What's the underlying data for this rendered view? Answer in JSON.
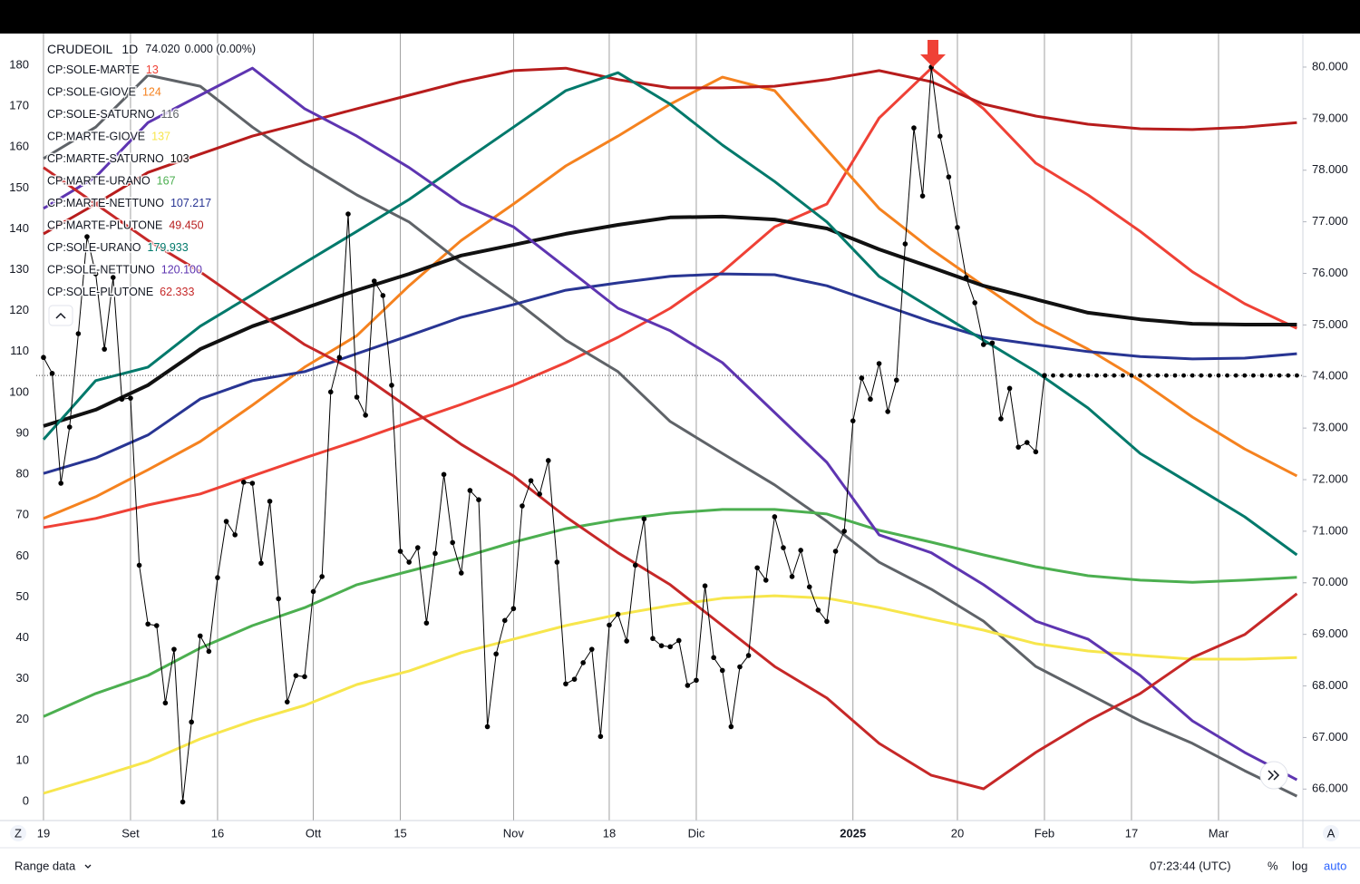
{
  "chart_data": {
    "type": "line",
    "symbol": "CRUDEOIL",
    "interval": "1D",
    "last_price": "74.020",
    "change": "0.000 (0.00%)",
    "grid": true,
    "xlim": [
      -0.83,
      144.69
    ],
    "xticks": [
      {
        "value": 0,
        "label": "19"
      },
      {
        "value": 10,
        "label": "Set"
      },
      {
        "value": 20,
        "label": "16"
      },
      {
        "value": 31,
        "label": "Ott"
      },
      {
        "value": 41,
        "label": "15"
      },
      {
        "value": 54,
        "label": "Nov"
      },
      {
        "value": 65,
        "label": "18"
      },
      {
        "value": 75,
        "label": "Dic"
      },
      {
        "value": 93,
        "label": "2025",
        "emphasis": true
      },
      {
        "value": 105,
        "label": "20"
      },
      {
        "value": 115,
        "label": "Feb"
      },
      {
        "value": 125,
        "label": "17"
      },
      {
        "value": 135,
        "label": "Mar"
      }
    ],
    "ylim": [
      -4.66,
      187.77
    ],
    "yticks": [
      0,
      10,
      20,
      30,
      40,
      50,
      60,
      70,
      80,
      90,
      100,
      110,
      120,
      130,
      140,
      150,
      160,
      170,
      180
    ],
    "y2lim": [
      65.39,
      80.65
    ],
    "y2ticks": [
      {
        "value": 66,
        "label": "66.000"
      },
      {
        "value": 67,
        "label": "67.000"
      },
      {
        "value": 68,
        "label": "68.000"
      },
      {
        "value": 69,
        "label": "69.000"
      },
      {
        "value": 70,
        "label": "70.000"
      },
      {
        "value": 71,
        "label": "71.000"
      },
      {
        "value": 72,
        "label": "72.000"
      },
      {
        "value": 73,
        "label": "73.000"
      },
      {
        "value": 74,
        "label": "74.000"
      },
      {
        "value": 75,
        "label": "75.000"
      },
      {
        "value": 76,
        "label": "76.000"
      },
      {
        "value": 77,
        "label": "77.000"
      },
      {
        "value": 78,
        "label": "78.000"
      },
      {
        "value": 79,
        "label": "79.000"
      },
      {
        "value": 80,
        "label": "80.000"
      }
    ],
    "x": [
      0,
      6,
      12,
      18,
      24,
      30,
      36,
      42,
      48,
      54,
      60,
      66,
      72,
      78,
      84,
      90,
      96,
      102,
      108,
      114,
      120,
      126,
      132,
      138,
      144
    ],
    "series": [
      {
        "name": "CP:SOLE-MARTE",
        "legend_value": 13,
        "color": "#ef4136",
        "line_width": 3,
        "values": [
          67,
          69.2,
          72.5,
          75.2,
          79.6,
          84,
          88.2,
          92.7,
          97.1,
          101.8,
          107.3,
          113.5,
          120.6,
          129.5,
          140.5,
          146.1,
          167.1,
          179.3,
          169.4,
          156.1,
          148.3,
          139.4,
          129.5,
          121.7,
          115.7
        ]
      },
      {
        "name": "CP:SOLE-GIOVE",
        "legend_value": 124,
        "color": "#f5821f",
        "line_width": 3,
        "values": [
          69.2,
          74.5,
          81.1,
          88,
          96.9,
          106.2,
          113.9,
          126.1,
          137.2,
          146.1,
          155.4,
          162.7,
          170.5,
          177.1,
          173.8,
          159.4,
          145,
          135,
          126.1,
          117.3,
          110.6,
          102.9,
          94,
          86.2,
          79.6
        ]
      },
      {
        "name": "CP:SOLE-SATURNO",
        "legend_value": 116,
        "color": "#5f6368",
        "line_width": 3,
        "values": [
          157.2,
          164.9,
          177.6,
          174.9,
          164.9,
          156.1,
          148.3,
          141.7,
          131.7,
          122.8,
          112.8,
          105.1,
          92.9,
          85.1,
          77.4,
          68.5,
          58.5,
          51.9,
          44.1,
          33,
          26.4,
          19.7,
          14.2,
          7.5,
          1.3
        ]
      },
      {
        "name": "CP:MARTE-GIOVE",
        "legend_value": 137,
        "color": "#f7e64c",
        "line_width": 3,
        "values": [
          2,
          5.8,
          9.8,
          15.3,
          19.7,
          23.5,
          28.6,
          31.9,
          36.4,
          39.7,
          43,
          45.7,
          47.9,
          49.7,
          50.3,
          49.7,
          47.4,
          44.6,
          41.9,
          38.6,
          36.8,
          35.7,
          34.8,
          34.8,
          35.2
        ]
      },
      {
        "name": "CP:MARTE-SATURNO",
        "legend_value": 103,
        "color": "#111111",
        "line_width": 4,
        "values": [
          91.8,
          95.8,
          101.8,
          110.6,
          116.2,
          120.6,
          125,
          129,
          133.5,
          136.1,
          138.8,
          141,
          142.8,
          143,
          142.3,
          140.1,
          135,
          130.6,
          126.1,
          122.8,
          119.5,
          117.9,
          116.8,
          116.6,
          116.6
        ]
      },
      {
        "name": "CP:MARTE-URANO",
        "legend_value": 167,
        "color": "#4caf50",
        "line_width": 3,
        "values": [
          20.8,
          26.4,
          30.8,
          37.5,
          43,
          47.4,
          53,
          56.3,
          59.6,
          63.4,
          66.7,
          68.9,
          70.5,
          71.4,
          71.4,
          70.3,
          66.3,
          63.4,
          60.3,
          57.4,
          55.2,
          54.1,
          53.6,
          54.1,
          54.8
        ]
      },
      {
        "name": "CP:MARTE-NETTUNO",
        "legend_value": 107.217,
        "color": "#283593",
        "line_width": 3,
        "values": [
          80.2,
          84,
          89.6,
          98.4,
          102.9,
          105.1,
          109.5,
          113.9,
          118.4,
          121.5,
          125,
          126.8,
          128.4,
          129,
          128.8,
          126.1,
          121.7,
          117.3,
          113.5,
          111.7,
          110,
          108.8,
          108.2,
          108.4,
          109.5
        ]
      },
      {
        "name": "CP:MARTE-PLUTONE",
        "legend_value": {
          "value": 49.45,
          "label": "49.450"
        },
        "color": "#b71c1c",
        "line_width": 3,
        "values": [
          138.8,
          146.1,
          153.8,
          158.3,
          162.7,
          166,
          169.4,
          172.7,
          176,
          178.7,
          179.3,
          176.5,
          174.5,
          174.5,
          174.9,
          176.5,
          178.7,
          176,
          170.5,
          167.6,
          165.6,
          164.5,
          164.3,
          164.9,
          166
        ]
      },
      {
        "name": "CP:SOLE-URANO",
        "legend_value": 179.933,
        "color": "#00796b",
        "line_width": 3,
        "values": [
          88.5,
          102.9,
          106.2,
          116.2,
          123.9,
          131.7,
          139.4,
          147.2,
          156.1,
          164.9,
          173.8,
          178.2,
          170.5,
          160.5,
          151.6,
          141.7,
          128.4,
          120.6,
          112.8,
          105.1,
          96.2,
          85.1,
          77.4,
          69.6,
          60.3
        ]
      },
      {
        "name": "CP:SOLE-NETTUNO",
        "legend_value": {
          "value": 120.1,
          "label": "120.100"
        },
        "color": "#5e35b1",
        "line_width": 3,
        "values": [
          145,
          152.7,
          166,
          172.7,
          179.3,
          169.4,
          162.7,
          155,
          146.1,
          140.5,
          130.6,
          120.6,
          115.1,
          107.3,
          95.1,
          82.9,
          65.2,
          60.8,
          53,
          44.1,
          39.7,
          30.8,
          19.7,
          12,
          5.3
        ]
      },
      {
        "name": "CP:SOLE-PLUTONE",
        "legend_value": 62.333,
        "color": "#c62828",
        "line_width": 3,
        "values": [
          155,
          146.1,
          137.2,
          129.5,
          120.6,
          111.7,
          105.1,
          96.2,
          87.3,
          79.6,
          69.6,
          60.8,
          53,
          43,
          33,
          25.3,
          14.2,
          6.4,
          3.1,
          12,
          19.7,
          26.4,
          35.2,
          40.8,
          50.8
        ]
      }
    ],
    "price": {
      "axis": "y2",
      "color": "#000000",
      "x": [
        0,
        1,
        2,
        3,
        4,
        5,
        6,
        7,
        8,
        9,
        10,
        11,
        12,
        13,
        14,
        15,
        16,
        17,
        18,
        19,
        20,
        21,
        22,
        23,
        24,
        25,
        26,
        27,
        28,
        29,
        30,
        31,
        32,
        33,
        34,
        35,
        36,
        37,
        38,
        39,
        40,
        41,
        42,
        43,
        44,
        45,
        46,
        47,
        48,
        49,
        50,
        51,
        52,
        53,
        54,
        55,
        56,
        57,
        58,
        59,
        60,
        61,
        62,
        63,
        64,
        65,
        66,
        67,
        68,
        69,
        70,
        71,
        72,
        73,
        74,
        75,
        76,
        77,
        78,
        79,
        80,
        81,
        82,
        83,
        84,
        85,
        86,
        87,
        88,
        89,
        90,
        91,
        92,
        93,
        94,
        95,
        96,
        97,
        98,
        99,
        100,
        101,
        102,
        103,
        104,
        105,
        106,
        107,
        108,
        109,
        110,
        111,
        112,
        113,
        114,
        115
      ],
      "values": [
        74.37,
        74.06,
        71.93,
        73.02,
        74.83,
        76.71,
        75.99,
        74.53,
        75.92,
        73.56,
        73.58,
        70.34,
        69.2,
        69.17,
        67.67,
        68.71,
        65.75,
        67.3,
        68.97,
        68.67,
        70.1,
        71.19,
        70.93,
        71.95,
        71.93,
        70.38,
        71.58,
        69.69,
        67.69,
        68.2,
        68.18,
        69.83,
        70.12,
        73.7,
        74.37,
        77.15,
        73.6,
        73.25,
        75.85,
        75.57,
        73.83,
        70.61,
        70.4,
        70.68,
        69.22,
        70.57,
        72.1,
        70.78,
        70.19,
        71.79,
        71.61,
        67.21,
        68.62,
        69.27,
        69.5,
        71.49,
        71.98,
        71.72,
        72.37,
        70.4,
        68.04,
        68.13,
        68.45,
        68.71,
        67.02,
        69.18,
        69.39,
        68.87,
        70.34,
        71.24,
        68.92,
        68.78,
        68.76,
        68.88,
        68.01,
        68.11,
        69.94,
        68.55,
        68.3,
        67.21,
        68.37,
        68.59,
        70.29,
        70.05,
        71.28,
        70.68,
        70.12,
        70.63,
        69.92,
        69.47,
        69.25,
        70.61,
        71.0,
        73.14,
        73.97,
        73.56,
        74.25,
        73.32,
        73.93,
        76.57,
        78.82,
        77.5,
        80.0,
        78.66,
        77.87,
        76.89,
        75.92,
        75.43,
        74.62,
        74.65,
        73.18,
        73.77,
        72.63,
        72.72,
        72.54,
        74.02
      ]
    }
  },
  "toolbar": {
    "range": "Range data",
    "clock": "07:23:44 (UTC)",
    "percent": "%",
    "log": "log",
    "auto": "auto",
    "left_button": "Z",
    "right_button": "A"
  }
}
